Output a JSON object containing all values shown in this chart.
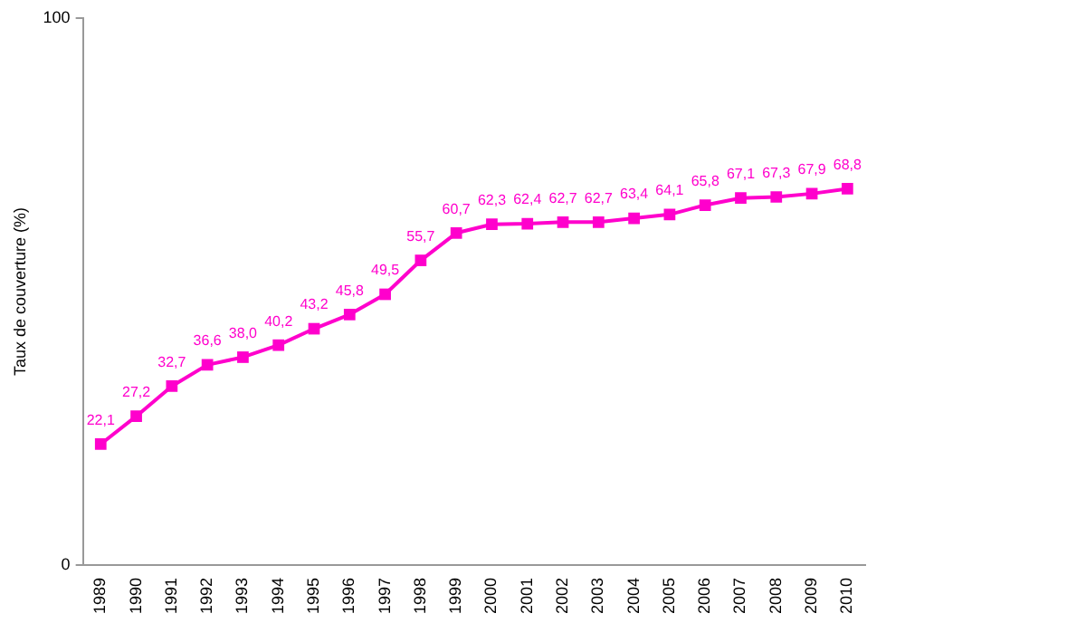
{
  "chart_data": {
    "type": "line",
    "ylabel": "Taux de couverture (%)",
    "categories": [
      "1989",
      "1990",
      "1991",
      "1992",
      "1993",
      "1994",
      "1995",
      "1996",
      "1997",
      "1998",
      "1999",
      "2000",
      "2001",
      "2002",
      "2003",
      "2004",
      "2005",
      "2006",
      "2007",
      "2008",
      "2009",
      "2010"
    ],
    "series": [
      {
        "color": "#ff00cc",
        "values": [
          22.1,
          27.2,
          32.7,
          36.6,
          38.0,
          40.2,
          43.2,
          45.8,
          49.5,
          55.7,
          60.7,
          62.3,
          62.4,
          62.7,
          62.7,
          63.4,
          64.1,
          65.8,
          67.1,
          67.3,
          67.9,
          68.8
        ],
        "value_labels": [
          "22,1",
          "27,2",
          "32,7",
          "36,6",
          "38,0",
          "40,2",
          "43,2",
          "45,8",
          "49,5",
          "55,7",
          "60,7",
          "62,3",
          "62,4",
          "62,7",
          "62,7",
          "63,4",
          "64,1",
          "65,8",
          "67,1",
          "67,3",
          "67,9",
          "68,8"
        ]
      }
    ],
    "ylim": [
      0,
      100
    ],
    "yticks": [
      0,
      100
    ],
    "grid": false,
    "legend": false,
    "marker": "square",
    "line_style": "solid"
  }
}
